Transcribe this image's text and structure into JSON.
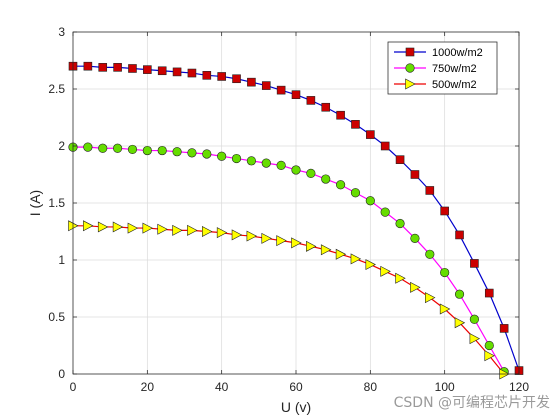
{
  "chart_data": {
    "type": "line",
    "xlabel": "U (v)",
    "ylabel": "I (A)",
    "xlim": [
      0,
      120
    ],
    "ylim": [
      0,
      3
    ],
    "xticks": [
      0,
      20,
      40,
      60,
      80,
      100,
      120
    ],
    "yticks": [
      0,
      0.5,
      1,
      1.5,
      2,
      2.5,
      3
    ],
    "ytick_labels": [
      "0",
      "0.5",
      "1",
      "1.5",
      "2",
      "2.5",
      "3"
    ],
    "grid": true,
    "legend_position": "top-right",
    "series": [
      {
        "name": "1000w/m2",
        "color": "#0000cc",
        "marker": "square",
        "marker_color": "#cc0000",
        "x": [
          0,
          4,
          8,
          12,
          16,
          20,
          24,
          28,
          32,
          36,
          40,
          44,
          48,
          52,
          56,
          60,
          64,
          68,
          72,
          76,
          80,
          84,
          88,
          92,
          96,
          100,
          104,
          108,
          112,
          116,
          120
        ],
        "y": [
          2.7,
          2.7,
          2.69,
          2.69,
          2.68,
          2.67,
          2.66,
          2.65,
          2.64,
          2.62,
          2.61,
          2.59,
          2.56,
          2.53,
          2.49,
          2.45,
          2.4,
          2.34,
          2.27,
          2.19,
          2.1,
          2.0,
          1.88,
          1.75,
          1.61,
          1.43,
          1.22,
          0.97,
          0.71,
          0.4,
          0.03
        ]
      },
      {
        "name": "750w/m2",
        "color": "#ff00ff",
        "marker": "circle",
        "marker_color": "#66dd00",
        "x": [
          0,
          4,
          8,
          12,
          16,
          20,
          24,
          28,
          32,
          36,
          40,
          44,
          48,
          52,
          56,
          60,
          64,
          68,
          72,
          76,
          80,
          84,
          88,
          92,
          96,
          100,
          104,
          108,
          112,
          116
        ],
        "y": [
          1.99,
          1.99,
          1.98,
          1.98,
          1.97,
          1.96,
          1.96,
          1.95,
          1.94,
          1.93,
          1.91,
          1.89,
          1.87,
          1.85,
          1.83,
          1.79,
          1.76,
          1.71,
          1.66,
          1.59,
          1.52,
          1.42,
          1.32,
          1.19,
          1.05,
          0.89,
          0.7,
          0.48,
          0.25,
          0.02
        ]
      },
      {
        "name": "500w/m2",
        "color": "#ee0000",
        "marker": "triangle-right",
        "marker_color": "#ffff00",
        "x": [
          0,
          4,
          8,
          12,
          16,
          20,
          24,
          28,
          32,
          36,
          40,
          44,
          48,
          52,
          56,
          60,
          64,
          68,
          72,
          76,
          80,
          84,
          88,
          92,
          96,
          100,
          104,
          108,
          112,
          116
        ],
        "y": [
          1.3,
          1.3,
          1.29,
          1.29,
          1.28,
          1.28,
          1.27,
          1.26,
          1.26,
          1.25,
          1.24,
          1.22,
          1.21,
          1.19,
          1.17,
          1.15,
          1.12,
          1.09,
          1.05,
          1.01,
          0.96,
          0.9,
          0.84,
          0.76,
          0.67,
          0.57,
          0.45,
          0.31,
          0.16,
          0.0
        ]
      }
    ]
  },
  "watermark": "CSDN @可编程芯片开发"
}
